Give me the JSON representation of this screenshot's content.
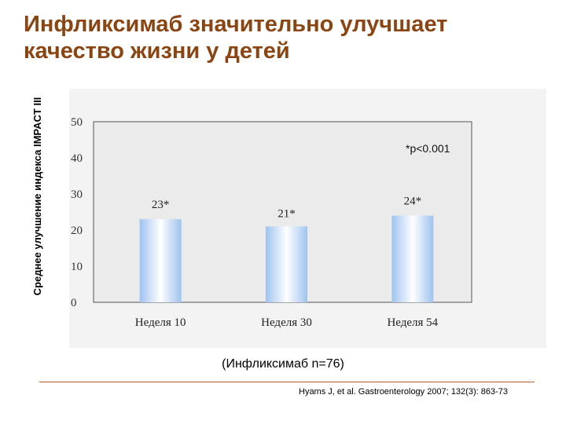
{
  "title": "Инфликсимаб значительно улучшает качество жизни у детей",
  "caption": "(Инфликсимаб n=76)",
  "citation": "Hyams J, et al. Gastroenterology 2007; 132(3): 863-73",
  "colors": {
    "title": "#8B4513",
    "bar_edge": "#9EC3F0",
    "bar_center": "#FFFFFF",
    "panel": "#F3F3F3",
    "divider": "#B05A2A"
  },
  "chart_data": {
    "type": "bar",
    "categories": [
      "Неделя 10",
      "Неделя 30",
      "Неделя 54"
    ],
    "values": [
      23,
      21,
      24
    ],
    "data_labels": [
      "23*",
      "21*",
      "24*"
    ],
    "title": "",
    "xlabel": "",
    "ylabel": "Среднее улучшение индекса IMPACT III",
    "ylim": [
      0,
      50
    ],
    "yticks": [
      0,
      10,
      20,
      30,
      40,
      50
    ],
    "annotation": "*p<0.001",
    "grid": false,
    "legend": "none"
  }
}
